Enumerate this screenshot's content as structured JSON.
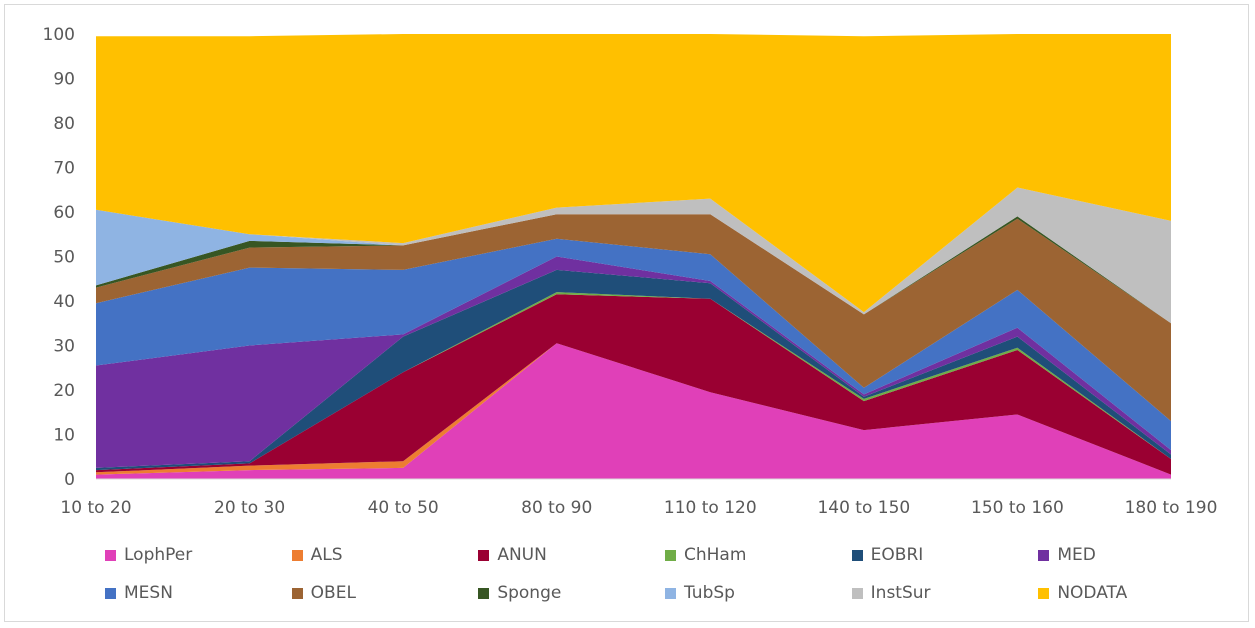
{
  "chart_data": {
    "type": "area",
    "stacked": true,
    "title": "",
    "xlabel": "",
    "ylabel": "",
    "categories": [
      "10 to 20",
      "20 to 30",
      "40 to 50",
      "80 to 90",
      "110 to 120",
      "140 to 150",
      "150 to 160",
      "180 to 190"
    ],
    "y_ticks": [
      "0",
      "10",
      "20",
      "30",
      "40",
      "50",
      "60",
      "70",
      "80",
      "90",
      "100"
    ],
    "ylim": [
      0,
      100
    ],
    "grid": false,
    "legend_position": "bottom",
    "series": [
      {
        "name": "LophPer",
        "color": "#E040B8",
        "values": [
          1,
          2,
          2.5,
          30.5,
          19.5,
          11,
          14.5,
          1
        ]
      },
      {
        "name": "ALS",
        "color": "#ED7D31",
        "values": [
          0.5,
          1,
          1.5,
          0,
          0,
          0,
          0,
          0
        ]
      },
      {
        "name": "ANUN",
        "color": "#9A0032",
        "values": [
          0.5,
          0.5,
          20,
          11,
          21,
          6.5,
          14.5,
          3.5
        ]
      },
      {
        "name": "ChHam",
        "color": "#70AD47",
        "values": [
          0,
          0,
          0,
          0.5,
          0,
          0.5,
          0.5,
          0
        ]
      },
      {
        "name": "EOBRI",
        "color": "#1F4E79",
        "values": [
          0.5,
          0.5,
          8,
          5,
          3.5,
          0.5,
          2.5,
          1
        ]
      },
      {
        "name": "MED",
        "color": "#7030A0",
        "values": [
          23,
          26,
          0.5,
          3,
          0.5,
          0.5,
          2,
          1
        ]
      },
      {
        "name": "MESN",
        "color": "#4472C4",
        "values": [
          14,
          17.5,
          14.5,
          4,
          6,
          1.5,
          8.5,
          6.5
        ]
      },
      {
        "name": "OBEL",
        "color": "#9C6433",
        "values": [
          3.5,
          4.5,
          5.5,
          5.5,
          9,
          16.5,
          16,
          22
        ]
      },
      {
        "name": "Sponge",
        "color": "#375623",
        "values": [
          0.5,
          1.5,
          0,
          0,
          0,
          0,
          0.5,
          0
        ]
      },
      {
        "name": "TubSp",
        "color": "#8FB4E3",
        "values": [
          17,
          1.5,
          0,
          0,
          0,
          0,
          0,
          0
        ]
      },
      {
        "name": "InstSur",
        "color": "#BFBFBF",
        "values": [
          0,
          0,
          0.5,
          1.5,
          3.5,
          0.5,
          6.5,
          23
        ]
      },
      {
        "name": "NODATA",
        "color": "#FFC000",
        "values": [
          39,
          44.5,
          47,
          39,
          37,
          62,
          34.5,
          42
        ]
      }
    ]
  }
}
